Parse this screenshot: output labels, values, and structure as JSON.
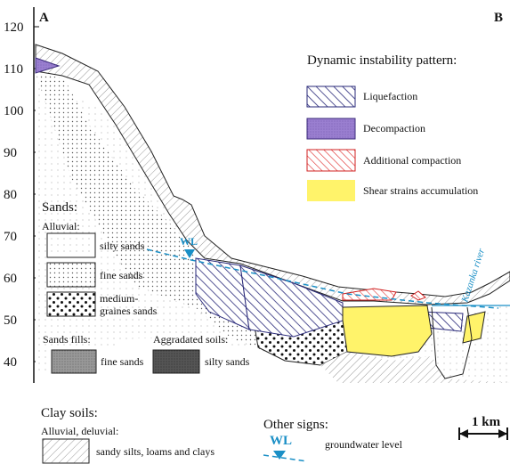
{
  "section": {
    "left_label": "A",
    "right_label": "B",
    "axis_ticks": [
      120,
      110,
      100,
      90,
      80,
      70,
      60,
      50,
      40
    ],
    "wl_label": "WL",
    "river_label": "Kazanka river"
  },
  "pattern_legend": {
    "title": "Dynamic instability pattern:",
    "items": [
      "Liquefaction",
      "Decompaction",
      "Additional compaction",
      "Shear strains accumulation"
    ]
  },
  "soil_legend": {
    "sands_title": "Sands:",
    "alluvial_title": "Alluvial:",
    "alluvial_items": [
      "silty sands",
      "fine sands",
      "medium-",
      "graines sands"
    ],
    "fills_title": "Sands fills:",
    "fills_item": "fine sands",
    "aggradated_title": "Aggradated soils:",
    "aggradated_item": "silty sands",
    "clay_title": "Clay soils:",
    "clay_subtitle": "Alluvial, deluvial:",
    "clay_item": "sandy silts, loams and clays"
  },
  "other_signs": {
    "title": "Other signs:",
    "wl_label": "WL",
    "wl_text": "groundwater level"
  },
  "scale": {
    "label": "1 km"
  }
}
